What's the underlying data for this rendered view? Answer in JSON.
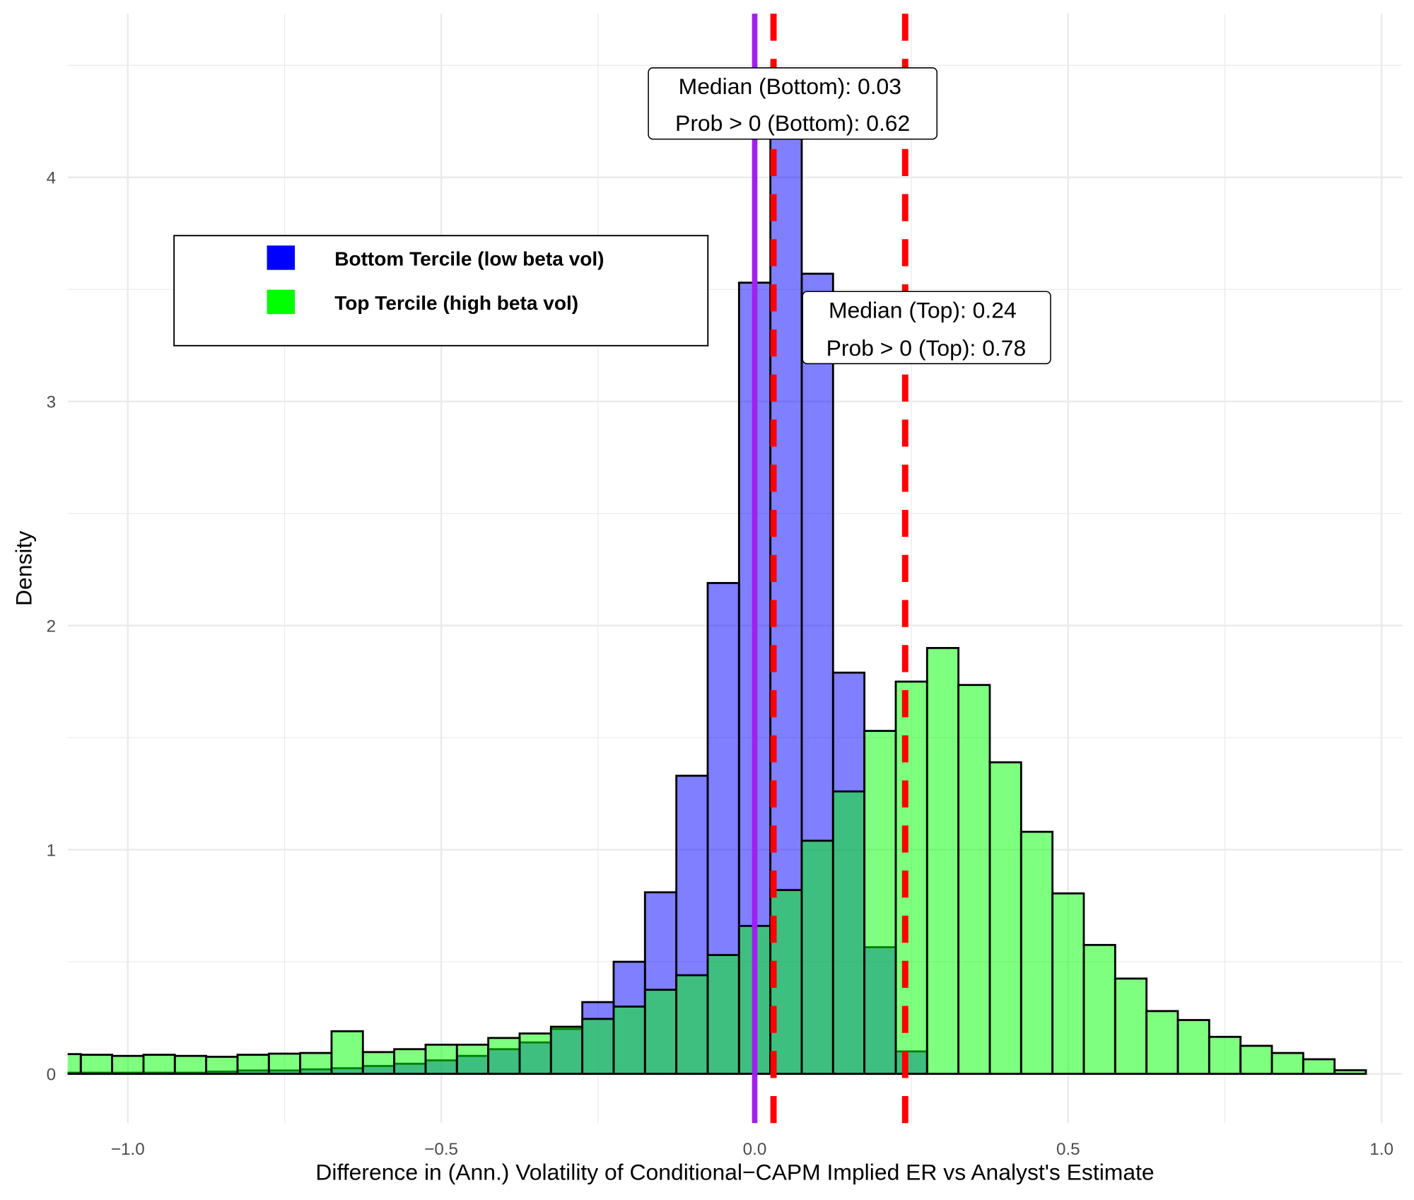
{
  "chart_data": {
    "type": "bar",
    "subtype": "overlaid histogram",
    "title": "",
    "xlabel": "Difference in (Ann.) Volatility of Conditional−CAPM Implied ER vs Analyst's Estimate",
    "ylabel": "Density",
    "xlim": [
      -1.096,
      1.033
    ],
    "ylim": [
      -0.22,
      4.73
    ],
    "bin_width": 0.05,
    "x_ticks": [
      -1.0,
      -0.5,
      0.0,
      0.5,
      1.0
    ],
    "x_tick_labels": [
      "−1.0",
      "−0.5",
      "0.0",
      "0.5",
      "1.0"
    ],
    "y_ticks": [
      0,
      1,
      2,
      3,
      4
    ],
    "y_tick_labels": [
      "0",
      "1",
      "2",
      "3",
      "4"
    ],
    "grid": true,
    "legend_position": "top-left",
    "bin_centers": [
      -1.1,
      -1.05,
      -1.0,
      -0.95,
      -0.9,
      -0.85,
      -0.8,
      -0.75,
      -0.7,
      -0.65,
      -0.6,
      -0.55,
      -0.5,
      -0.45,
      -0.4,
      -0.35,
      -0.3,
      -0.25,
      -0.2,
      -0.15,
      -0.1,
      -0.05,
      0.0,
      0.05,
      0.1,
      0.15,
      0.2,
      0.25,
      0.3,
      0.35,
      0.4,
      0.45,
      0.5,
      0.55,
      0.6,
      0.65,
      0.7,
      0.75,
      0.8,
      0.85,
      0.9,
      0.95
    ],
    "series": [
      {
        "name": "Bottom Tercile (low beta vol)",
        "color": "#0000ff",
        "values": [
          0.005,
          0.005,
          0.005,
          0.005,
          0.005,
          0.01,
          0.015,
          0.015,
          0.02,
          0.025,
          0.035,
          0.045,
          0.06,
          0.08,
          0.11,
          0.14,
          0.2,
          0.32,
          0.5,
          0.81,
          1.33,
          2.19,
          3.53,
          4.4,
          3.57,
          1.79,
          0.565,
          0.1,
          0,
          0,
          0,
          0,
          0,
          0,
          0,
          0,
          0,
          0,
          0,
          0,
          0,
          0
        ]
      },
      {
        "name": "Top Tercile (high beta vol)",
        "color": "#00ff00",
        "values": [
          0.088,
          0.085,
          0.08,
          0.085,
          0.08,
          0.076,
          0.085,
          0.09,
          0.093,
          0.19,
          0.097,
          0.11,
          0.13,
          0.13,
          0.16,
          0.18,
          0.21,
          0.245,
          0.3,
          0.375,
          0.44,
          0.53,
          0.66,
          0.82,
          1.04,
          1.26,
          1.53,
          1.75,
          1.9,
          1.735,
          1.39,
          1.08,
          0.805,
          0.575,
          0.425,
          0.28,
          0.24,
          0.165,
          0.125,
          0.093,
          0.065,
          0.016
        ]
      }
    ],
    "vertical_lines": [
      {
        "x": 0.0,
        "color": "#a020f0",
        "style": "solid"
      },
      {
        "x": 0.03,
        "color": "#ff0000",
        "style": "dashed"
      },
      {
        "x": 0.24,
        "color": "#ff0000",
        "style": "dashed"
      }
    ],
    "annotations": [
      {
        "lines": [
          "Median (Bottom): 0.03",
          "Prob > 0 (Bottom): 0.62"
        ]
      },
      {
        "lines": [
          "Median (Top): 0.24",
          "Prob > 0 (Top): 0.78"
        ]
      }
    ]
  }
}
